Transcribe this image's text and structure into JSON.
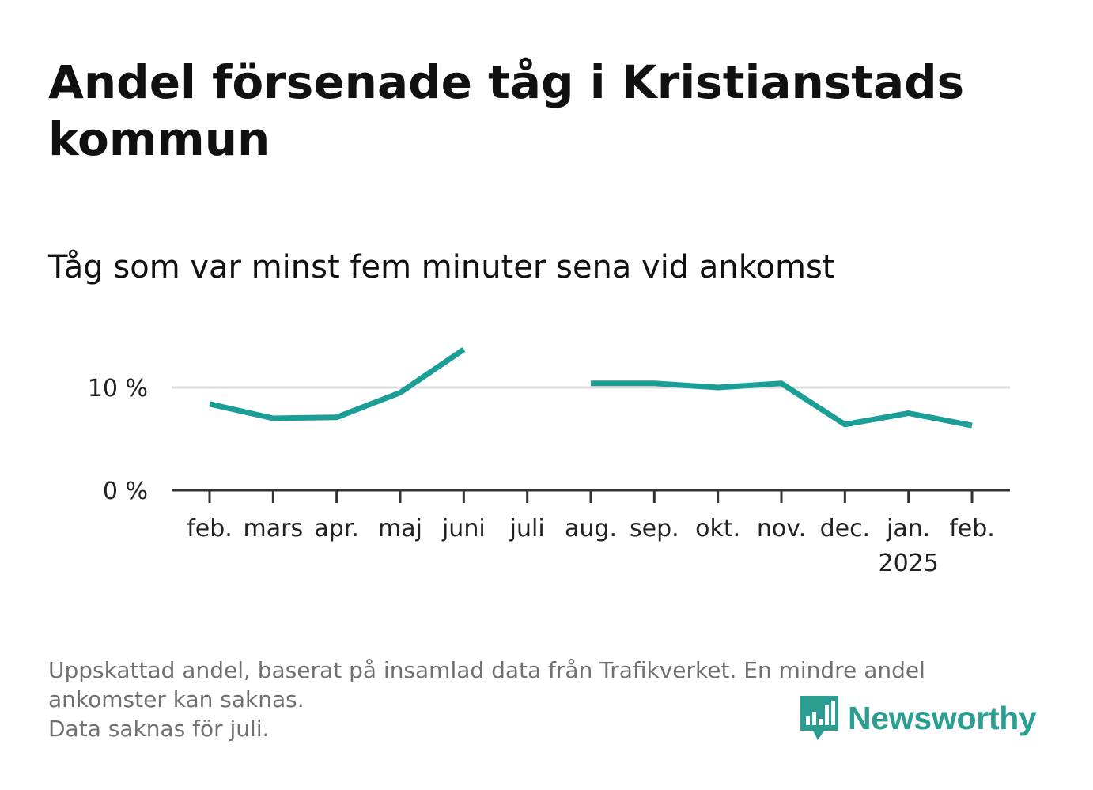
{
  "title": "Andel försenade tåg i Kristianstads kommun",
  "subtitle": "Tåg som var minst fem minuter sena vid ankomst",
  "colors": {
    "line": "#1a9e96",
    "grid": "#dddddd",
    "axis": "#333333",
    "footer": "#707070",
    "brand": "#2b9e91"
  },
  "chart_data": {
    "type": "line",
    "title": "Andel försenade tåg i Kristianstads kommun",
    "subtitle": "Tåg som var minst fem minuter sena vid ankomst",
    "categories": [
      "feb.",
      "mars",
      "apr.",
      "maj",
      "juni",
      "juli",
      "aug.",
      "sep.",
      "okt.",
      "nov.",
      "dec.",
      "jan.",
      "feb."
    ],
    "category_sublabels": [
      "",
      "",
      "",
      "",
      "",
      "",
      "",
      "",
      "",
      "",
      "",
      "2025",
      ""
    ],
    "series": [
      {
        "values": [
          8.4,
          7.0,
          7.1,
          9.5,
          13.7,
          null,
          10.4,
          10.4,
          10.0,
          10.4,
          6.4,
          7.5,
          6.3
        ]
      }
    ],
    "yticks": [
      0,
      10
    ],
    "ytick_labels": [
      "0 %",
      "10 %"
    ],
    "ylim": [
      0,
      14
    ],
    "grid": true,
    "missing_note": "juli"
  },
  "footer": {
    "line1": "Uppskattad andel, baserat på insamlad data från Trafikverket. En mindre andel ankomster kan saknas.",
    "line2": "Data saknas för juli."
  },
  "logo": {
    "text": "Newsworthy",
    "icon": "newsworthy-bar-chart-icon"
  }
}
